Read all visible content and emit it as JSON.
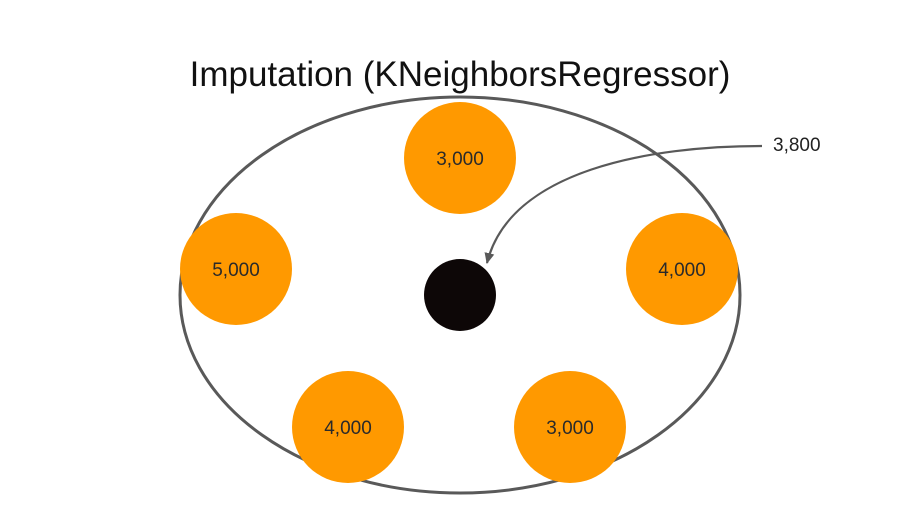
{
  "title": "Imputation (KNeighborsRegressor)",
  "prediction": {
    "label": "3,800"
  },
  "neighbors": [
    {
      "id": "top",
      "value": "3,000"
    },
    {
      "id": "left",
      "value": "5,000"
    },
    {
      "id": "right",
      "value": "4,000"
    },
    {
      "id": "bottom-left",
      "value": "4,000"
    },
    {
      "id": "bottom-right",
      "value": "3,000"
    }
  ],
  "colors": {
    "neighbor_fill": "#FF9900",
    "target_fill": "#0d0707",
    "outline": "#595959",
    "arrow": "#595959"
  }
}
